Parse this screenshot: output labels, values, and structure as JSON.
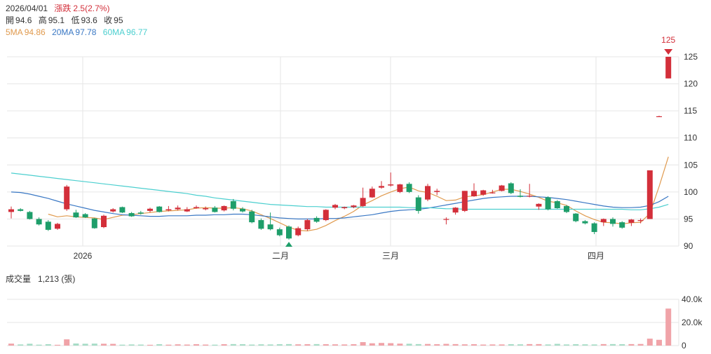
{
  "header": {
    "date": "2026/04/01",
    "change_label": "漲跌",
    "change_value": "2.5(2.7%)",
    "open_label": "開",
    "open_value": "94.6",
    "high_label": "高",
    "high_value": "95.1",
    "low_label": "低",
    "low_value": "93.6",
    "close_label": "收",
    "close_value": "95",
    "ma5_label": "5MA",
    "ma5_value": "94.86",
    "ma20_label": "20MA",
    "ma20_value": "97.78",
    "ma60_label": "60MA",
    "ma60_value": "96.77"
  },
  "volume_header": {
    "label": "成交量",
    "value": "1,213 (張)"
  },
  "colors": {
    "up": "#d32f3a",
    "down": "#1e9e6a",
    "ma5": "#e09a4e",
    "ma20": "#3a78c4",
    "ma60": "#4ccfcf",
    "vol_up": "#f0a3a8",
    "vol_down": "#a6dcc6",
    "grid": "#e6e6e6"
  },
  "chart_data": [
    {
      "type": "candlestick",
      "x_labels": [
        "2026",
        "二月",
        "三月",
        "四月"
      ],
      "y_ticks": [
        90,
        95,
        100,
        105,
        110,
        115,
        120,
        125
      ],
      "ylim": [
        90,
        125
      ],
      "grid": true,
      "marker_high": "125",
      "candles": [
        [
          96.3,
          97.3,
          95.1,
          96.8
        ],
        [
          96.8,
          97.0,
          96.4,
          96.5
        ],
        [
          96.3,
          96.5,
          94.9,
          95.0
        ],
        [
          95.0,
          95.3,
          93.8,
          94.0
        ],
        [
          94.5,
          94.8,
          92.8,
          93.0
        ],
        [
          93.2,
          94.3,
          93.0,
          94.1
        ],
        [
          96.8,
          101.3,
          96.5,
          101.0
        ],
        [
          96.2,
          96.7,
          95.2,
          95.3
        ],
        [
          95.9,
          96.1,
          95.2,
          95.3
        ],
        [
          95.1,
          95.2,
          93.2,
          93.3
        ],
        [
          93.5,
          95.8,
          93.3,
          95.6
        ],
        [
          96.4,
          97.0,
          96.2,
          96.8
        ],
        [
          97.2,
          97.3,
          96.1,
          96.2
        ],
        [
          96.1,
          96.3,
          95.4,
          95.5
        ],
        [
          96.2,
          96.5,
          95.8,
          96.0
        ],
        [
          96.5,
          97.1,
          96.2,
          96.9
        ],
        [
          97.3,
          97.4,
          96.2,
          96.3
        ],
        [
          96.6,
          97.4,
          96.4,
          96.8
        ],
        [
          96.8,
          97.5,
          96.6,
          97.1
        ],
        [
          96.4,
          97.2,
          96.3,
          96.8
        ],
        [
          97.0,
          97.5,
          96.9,
          97.2
        ],
        [
          96.8,
          97.3,
          96.6,
          97.0
        ],
        [
          97.1,
          97.4,
          96.2,
          96.3
        ],
        [
          96.6,
          97.5,
          96.4,
          97.4
        ],
        [
          98.3,
          98.7,
          96.6,
          96.9
        ],
        [
          96.9,
          97.2,
          96.2,
          96.4
        ],
        [
          96.4,
          96.7,
          94.2,
          94.4
        ],
        [
          94.8,
          95.1,
          93.0,
          93.2
        ],
        [
          94.0,
          96.2,
          92.9,
          93.1
        ],
        [
          93.1,
          93.4,
          91.8,
          92.0
        ],
        [
          93.6,
          93.8,
          91.2,
          91.4
        ],
        [
          92.0,
          93.6,
          91.8,
          93.3
        ],
        [
          93.1,
          95.0,
          92.8,
          94.8
        ],
        [
          95.2,
          95.5,
          94.3,
          94.5
        ],
        [
          94.8,
          96.8,
          94.6,
          96.7
        ],
        [
          97.1,
          97.8,
          96.8,
          97.6
        ],
        [
          97.0,
          97.3,
          96.8,
          97.2
        ],
        [
          97.2,
          97.6,
          97.0,
          97.5
        ],
        [
          97.4,
          100.8,
          97.2,
          98.9
        ],
        [
          99.0,
          101.0,
          98.9,
          100.6
        ],
        [
          100.8,
          102.0,
          100.6,
          101.1
        ],
        [
          101.2,
          103.6,
          101.0,
          101.4
        ],
        [
          100.0,
          101.5,
          99.8,
          101.4
        ],
        [
          101.5,
          101.8,
          99.8,
          100.0
        ],
        [
          99.0,
          99.4,
          96.0,
          96.5
        ],
        [
          98.6,
          101.5,
          98.3,
          101.1
        ],
        [
          100.0,
          100.6,
          99.4,
          100.2
        ],
        [
          94.9,
          95.3,
          94.0,
          95.0
        ],
        [
          96.2,
          97.2,
          95.8,
          97.1
        ],
        [
          96.5,
          100.2,
          96.3,
          100.2
        ],
        [
          99.2,
          101.6,
          99.1,
          100.2
        ],
        [
          99.5,
          100.4,
          99.3,
          100.3
        ],
        [
          99.9,
          100.4,
          99.7,
          99.9
        ],
        [
          100.2,
          101.3,
          100.1,
          101.2
        ],
        [
          101.6,
          101.8,
          99.6,
          99.8
        ],
        [
          99.3,
          100.5,
          99.0,
          99.1
        ],
        [
          99.2,
          101.5,
          99.0,
          99.3
        ],
        [
          97.3,
          97.9,
          96.7,
          97.8
        ],
        [
          99.0,
          99.2,
          96.6,
          96.8
        ],
        [
          98.3,
          98.5,
          96.9,
          97.0
        ],
        [
          97.4,
          97.6,
          96.1,
          96.3
        ],
        [
          96.0,
          96.1,
          94.4,
          94.6
        ],
        [
          94.6,
          94.8,
          94.0,
          94.2
        ],
        [
          94.2,
          94.4,
          92.2,
          92.6
        ],
        [
          94.4,
          95.1,
          93.7,
          95.0
        ],
        [
          95.0,
          95.3,
          93.6,
          94.1
        ],
        [
          94.4,
          94.6,
          93.2,
          93.4
        ],
        [
          94.3,
          95.0,
          93.7,
          94.9
        ],
        [
          94.7,
          95.1,
          94.2,
          94.8
        ],
        [
          95.0,
          104.0,
          95.0,
          104.0
        ],
        [
          113.9,
          114.1,
          113.9,
          114.0
        ],
        [
          121.0,
          125.0,
          121.0,
          125.0
        ]
      ],
      "volume": [
        1700,
        1000,
        1600,
        800,
        1200,
        700,
        5400,
        1800,
        1600,
        1700,
        1600,
        1500,
        800,
        1000,
        900,
        700,
        1200,
        800,
        1100,
        900,
        1200,
        900,
        800,
        1200,
        1300,
        1200,
        900,
        1100,
        1000,
        1200,
        1300,
        1100,
        1200,
        1300,
        1200,
        1100,
        1000,
        1200,
        3000,
        2000,
        2300,
        2100,
        1700,
        1600,
        1300,
        1400,
        1200,
        1500,
        1300,
        1100,
        1200,
        900,
        1000,
        1000,
        1200,
        1100,
        1300,
        1300,
        1000,
        1500,
        1000,
        1200,
        1100,
        1000,
        1300,
        1300,
        1200,
        1300,
        1400,
        6000,
        5000,
        32000
      ],
      "vol_ticks": [
        "0",
        "20.0k",
        "40.0k"
      ],
      "vol_ylim": [
        0,
        40000
      ],
      "series": [
        {
          "name": "5MA",
          "values": [
            null,
            null,
            null,
            null,
            95.9,
            95.4,
            95.6,
            95.4,
            95.3,
            95.2,
            94.9,
            95.3,
            95.7,
            95.8,
            96.0,
            96.2,
            96.4,
            96.5,
            96.6,
            96.7,
            97.0,
            97.1,
            97.0,
            97.0,
            97.1,
            96.9,
            96.5,
            95.8,
            95.1,
            94.3,
            93.5,
            92.9,
            92.8,
            93.1,
            93.8,
            94.7,
            95.5,
            96.4,
            97.6,
            98.4,
            99.3,
            100.0,
            100.6,
            100.9,
            100.2,
            99.9,
            99.2,
            98.4,
            98.5,
            99.1,
            99.3,
            99.5,
            100.0,
            100.5,
            100.5,
            100.1,
            99.6,
            99.0,
            98.3,
            98.0,
            97.5,
            96.5,
            95.6,
            94.9,
            94.4,
            94.3,
            94.1,
            94.3,
            94.4,
            96.0,
            101.0,
            106.5
          ]
        },
        {
          "name": "20MA",
          "values": [
            100.0,
            99.9,
            99.6,
            99.2,
            98.8,
            98.3,
            97.8,
            97.4,
            97.0,
            96.6,
            96.3,
            96.0,
            95.8,
            95.7,
            95.6,
            95.5,
            95.5,
            95.6,
            95.6,
            95.6,
            95.7,
            95.7,
            95.8,
            95.8,
            95.9,
            95.9,
            95.8,
            95.6,
            95.4,
            95.2,
            95.1,
            95.0,
            95.0,
            95.0,
            95.1,
            95.1,
            95.2,
            95.4,
            95.6,
            95.8,
            96.1,
            96.4,
            96.6,
            96.7,
            96.8,
            97.0,
            97.3,
            97.6,
            97.9,
            98.2,
            98.5,
            98.8,
            99.0,
            99.1,
            99.2,
            99.2,
            99.2,
            99.1,
            99.0,
            98.8,
            98.6,
            98.3,
            98.0,
            97.7,
            97.4,
            97.2,
            97.1,
            97.1,
            97.2,
            97.5,
            98.2,
            99.2
          ]
        },
        {
          "name": "60MA",
          "values": [
            103.5,
            103.3,
            103.1,
            102.9,
            102.7,
            102.5,
            102.3,
            102.1,
            101.9,
            101.7,
            101.5,
            101.3,
            101.1,
            100.9,
            100.7,
            100.5,
            100.3,
            100.1,
            99.9,
            99.7,
            99.4,
            99.2,
            98.9,
            98.7,
            98.5,
            98.3,
            98.1,
            97.9,
            97.7,
            97.6,
            97.5,
            97.4,
            97.3,
            97.3,
            97.2,
            97.2,
            97.2,
            97.2,
            97.2,
            97.2,
            97.2,
            97.2,
            97.2,
            97.1,
            97.1,
            97.1,
            97.0,
            96.9,
            96.9,
            96.8,
            96.8,
            96.8,
            96.8,
            96.8,
            96.8,
            96.8,
            96.8,
            96.8,
            96.8,
            96.8,
            96.8,
            96.8,
            96.8,
            96.8,
            96.8,
            96.8,
            96.8,
            96.7,
            96.7,
            96.9,
            97.2,
            97.7
          ]
        }
      ]
    }
  ]
}
